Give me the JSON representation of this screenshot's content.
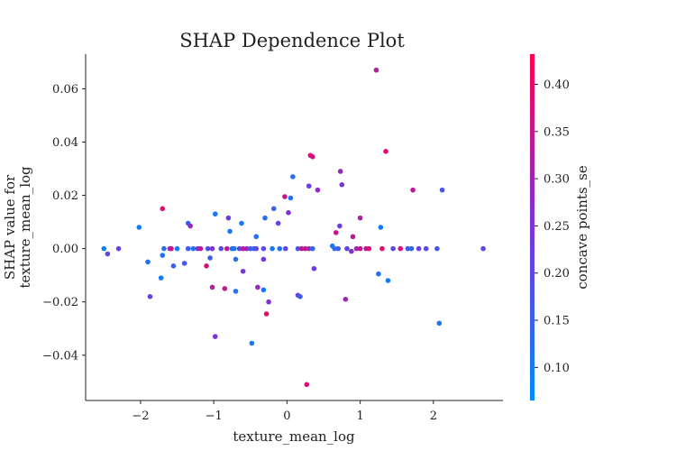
{
  "chart_data": {
    "type": "scatter",
    "title": "SHAP Dependence Plot",
    "xlabel": "texture_mean_log",
    "ylabel": [
      "SHAP value for",
      "texture_mean_log"
    ],
    "xlim": [
      -2.75,
      2.95
    ],
    "ylim": [
      -0.057,
      0.073
    ],
    "xticks": [
      -2,
      -1,
      0,
      1,
      2
    ],
    "xtick_labels": [
      "−2",
      "−1",
      "0",
      "1",
      "2"
    ],
    "yticks": [
      -0.04,
      -0.02,
      0.0,
      0.02,
      0.04,
      0.06
    ],
    "ytick_labels": [
      "−0.04",
      "−0.02",
      "0.00",
      "0.02",
      "0.04",
      "0.06"
    ],
    "grid": false,
    "legend": "none",
    "colorbar": {
      "label": "concave points_se",
      "range": [
        0.065,
        0.432
      ],
      "ticks": [
        0.1,
        0.15,
        0.2,
        0.25,
        0.3,
        0.35,
        0.4
      ],
      "tick_labels": [
        "0.10",
        "0.15",
        "0.20",
        "0.25",
        "0.30",
        "0.35",
        "0.40"
      ],
      "colors": [
        "#008afb",
        "#7b32dc",
        "#ff0051"
      ]
    },
    "points": [
      {
        "x": -2.5,
        "y": 0.0,
        "c": 0.08
      },
      {
        "x": -2.45,
        "y": -0.002,
        "c": 0.2
      },
      {
        "x": -2.3,
        "y": 0.0,
        "c": 0.22
      },
      {
        "x": -2.02,
        "y": 0.008,
        "c": 0.1
      },
      {
        "x": -1.9,
        "y": -0.005,
        "c": 0.12
      },
      {
        "x": -1.87,
        "y": -0.018,
        "c": 0.22
      },
      {
        "x": -1.72,
        "y": -0.011,
        "c": 0.1
      },
      {
        "x": -1.7,
        "y": -0.0025,
        "c": 0.12
      },
      {
        "x": -1.7,
        "y": 0.015,
        "c": 0.38
      },
      {
        "x": -1.68,
        "y": 0.0,
        "c": 0.12
      },
      {
        "x": -1.6,
        "y": 0.0,
        "c": 0.3
      },
      {
        "x": -1.58,
        "y": 0.0,
        "c": 0.36
      },
      {
        "x": -1.55,
        "y": -0.0065,
        "c": 0.15
      },
      {
        "x": -1.5,
        "y": 0.0,
        "c": 0.1
      },
      {
        "x": -1.4,
        "y": -0.0055,
        "c": 0.17
      },
      {
        "x": -1.35,
        "y": 0.0095,
        "c": 0.15
      },
      {
        "x": -1.32,
        "y": 0.0085,
        "c": 0.28
      },
      {
        "x": -1.35,
        "y": 0.0,
        "c": 0.15
      },
      {
        "x": -1.28,
        "y": 0.0,
        "c": 0.12
      },
      {
        "x": -1.22,
        "y": 0.0,
        "c": 0.23
      },
      {
        "x": -1.18,
        "y": 0.0,
        "c": 0.34
      },
      {
        "x": -1.1,
        "y": -0.0065,
        "c": 0.38
      },
      {
        "x": -1.08,
        "y": 0.0,
        "c": 0.2
      },
      {
        "x": -1.02,
        "y": 0.0,
        "c": 0.24
      },
      {
        "x": -1.05,
        "y": -0.0035,
        "c": 0.15
      },
      {
        "x": -1.02,
        "y": -0.0145,
        "c": 0.33
      },
      {
        "x": -0.98,
        "y": -0.033,
        "c": 0.25
      },
      {
        "x": -0.98,
        "y": 0.013,
        "c": 0.1
      },
      {
        "x": -0.9,
        "y": 0.0,
        "c": 0.2
      },
      {
        "x": -0.85,
        "y": -0.015,
        "c": 0.35
      },
      {
        "x": -0.82,
        "y": 0.0,
        "c": 0.34
      },
      {
        "x": -0.8,
        "y": 0.0115,
        "c": 0.22
      },
      {
        "x": -0.78,
        "y": 0.0065,
        "c": 0.1
      },
      {
        "x": -0.75,
        "y": 0.0,
        "c": 0.12
      },
      {
        "x": -0.72,
        "y": 0.0,
        "c": 0.1
      },
      {
        "x": -0.7,
        "y": -0.004,
        "c": 0.13
      },
      {
        "x": -0.7,
        "y": -0.016,
        "c": 0.12
      },
      {
        "x": -0.65,
        "y": 0.0,
        "c": 0.22
      },
      {
        "x": -0.62,
        "y": 0.0095,
        "c": 0.1
      },
      {
        "x": -0.6,
        "y": 0.0,
        "c": 0.33
      },
      {
        "x": -0.6,
        "y": -0.0085,
        "c": 0.24
      },
      {
        "x": -0.55,
        "y": 0.0,
        "c": 0.3
      },
      {
        "x": -0.5,
        "y": 0.0,
        "c": 0.16
      },
      {
        "x": -0.48,
        "y": -0.0355,
        "c": 0.1
      },
      {
        "x": -0.45,
        "y": 0.0,
        "c": 0.14
      },
      {
        "x": -0.42,
        "y": 0.0,
        "c": 0.2
      },
      {
        "x": -0.42,
        "y": 0.0045,
        "c": 0.12
      },
      {
        "x": -0.4,
        "y": -0.0145,
        "c": 0.28
      },
      {
        "x": -0.32,
        "y": 0.0,
        "c": 0.2
      },
      {
        "x": -0.32,
        "y": -0.004,
        "c": 0.24
      },
      {
        "x": -0.32,
        "y": -0.0155,
        "c": 0.1
      },
      {
        "x": -0.3,
        "y": 0.0115,
        "c": 0.12
      },
      {
        "x": -0.28,
        "y": -0.0245,
        "c": 0.4
      },
      {
        "x": -0.25,
        "y": -0.02,
        "c": 0.26
      },
      {
        "x": -0.2,
        "y": 0.0,
        "c": 0.1
      },
      {
        "x": -0.18,
        "y": 0.015,
        "c": 0.14
      },
      {
        "x": -0.12,
        "y": 0.0095,
        "c": 0.22
      },
      {
        "x": -0.1,
        "y": 0.0,
        "c": 0.12
      },
      {
        "x": -0.02,
        "y": 0.0,
        "c": 0.2
      },
      {
        "x": -0.03,
        "y": 0.0195,
        "c": 0.35
      },
      {
        "x": 0.02,
        "y": 0.0135,
        "c": 0.26
      },
      {
        "x": 0.05,
        "y": 0.019,
        "c": 0.12
      },
      {
        "x": 0.08,
        "y": 0.027,
        "c": 0.13
      },
      {
        "x": 0.15,
        "y": 0.0,
        "c": 0.18
      },
      {
        "x": 0.15,
        "y": -0.0175,
        "c": 0.22
      },
      {
        "x": 0.18,
        "y": -0.018,
        "c": 0.16
      },
      {
        "x": 0.2,
        "y": 0.0,
        "c": 0.34
      },
      {
        "x": 0.25,
        "y": 0.0,
        "c": 0.36
      },
      {
        "x": 0.27,
        "y": -0.051,
        "c": 0.38
      },
      {
        "x": 0.3,
        "y": 0.0235,
        "c": 0.22
      },
      {
        "x": 0.3,
        "y": 0.0,
        "c": 0.3
      },
      {
        "x": 0.32,
        "y": 0.035,
        "c": 0.38
      },
      {
        "x": 0.35,
        "y": 0.0345,
        "c": 0.36
      },
      {
        "x": 0.35,
        "y": 0.0,
        "c": 0.14
      },
      {
        "x": 0.37,
        "y": -0.0075,
        "c": 0.22
      },
      {
        "x": 0.42,
        "y": 0.022,
        "c": 0.28
      },
      {
        "x": 0.65,
        "y": 0.0,
        "c": 0.12
      },
      {
        "x": 0.62,
        "y": 0.001,
        "c": 0.1
      },
      {
        "x": 0.67,
        "y": 0.006,
        "c": 0.36
      },
      {
        "x": 0.7,
        "y": 0.0,
        "c": 0.16
      },
      {
        "x": 0.72,
        "y": 0.0085,
        "c": 0.22
      },
      {
        "x": 0.73,
        "y": 0.029,
        "c": 0.28
      },
      {
        "x": 0.75,
        "y": 0.024,
        "c": 0.24
      },
      {
        "x": 0.8,
        "y": -0.019,
        "c": 0.3
      },
      {
        "x": 0.82,
        "y": 0.0,
        "c": 0.2
      },
      {
        "x": 0.88,
        "y": -0.001,
        "c": 0.26
      },
      {
        "x": 0.9,
        "y": 0.0045,
        "c": 0.34
      },
      {
        "x": 0.95,
        "y": 0.0,
        "c": 0.3
      },
      {
        "x": 1.0,
        "y": 0.0,
        "c": 0.36
      },
      {
        "x": 1.0,
        "y": 0.0115,
        "c": 0.32
      },
      {
        "x": 1.08,
        "y": 0.0,
        "c": 0.34
      },
      {
        "x": 1.12,
        "y": 0.0,
        "c": 0.38
      },
      {
        "x": 1.22,
        "y": 0.067,
        "c": 0.33
      },
      {
        "x": 1.25,
        "y": -0.0095,
        "c": 0.12
      },
      {
        "x": 1.28,
        "y": 0.008,
        "c": 0.1
      },
      {
        "x": 1.3,
        "y": 0.0,
        "c": 0.4
      },
      {
        "x": 1.35,
        "y": 0.0365,
        "c": 0.4
      },
      {
        "x": 1.38,
        "y": -0.012,
        "c": 0.1
      },
      {
        "x": 1.45,
        "y": 0.0,
        "c": 0.2
      },
      {
        "x": 1.55,
        "y": 0.0,
        "c": 0.38
      },
      {
        "x": 1.65,
        "y": 0.0,
        "c": 0.16
      },
      {
        "x": 1.7,
        "y": 0.0,
        "c": 0.14
      },
      {
        "x": 1.72,
        "y": 0.022,
        "c": 0.34
      },
      {
        "x": 1.8,
        "y": 0.0,
        "c": 0.22
      },
      {
        "x": 1.9,
        "y": 0.0,
        "c": 0.2
      },
      {
        "x": 2.05,
        "y": 0.0,
        "c": 0.18
      },
      {
        "x": 2.08,
        "y": -0.028,
        "c": 0.1
      },
      {
        "x": 2.12,
        "y": 0.022,
        "c": 0.18
      },
      {
        "x": 2.68,
        "y": 0.0,
        "c": 0.2
      }
    ]
  }
}
